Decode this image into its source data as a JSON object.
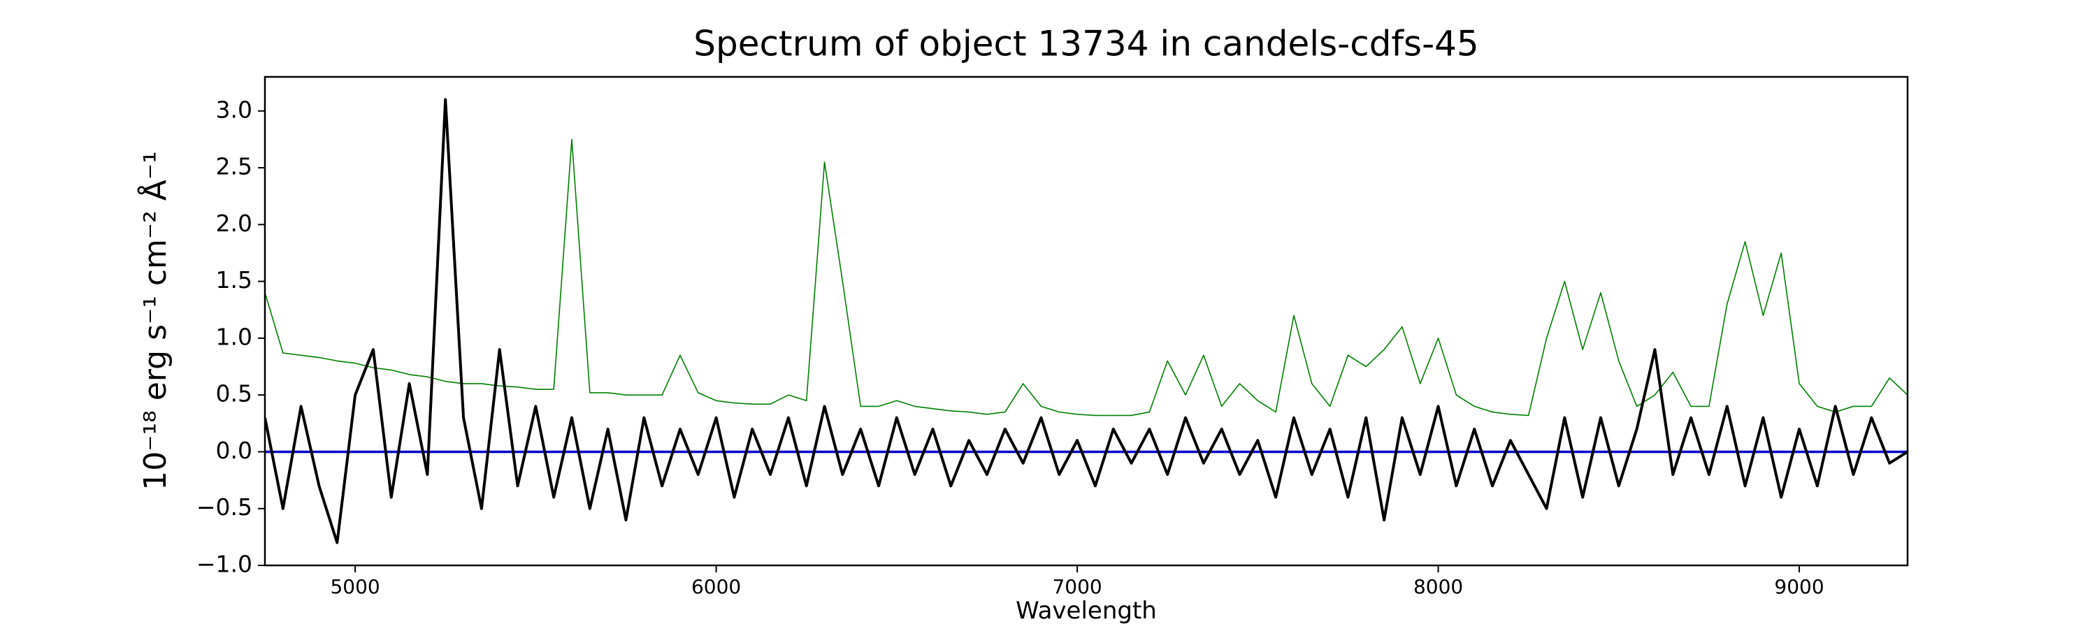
{
  "chart_data": {
    "type": "line",
    "title": "Spectrum of object 13734 in candels-cdfs-45",
    "xlabel": "Wavelength",
    "ylabel": "10⁻¹⁸ erg s⁻¹ cm⁻² Å⁻¹",
    "x": [
      4750,
      4800,
      4850,
      4900,
      4950,
      5000,
      5050,
      5100,
      5150,
      5200,
      5250,
      5300,
      5350,
      5400,
      5450,
      5500,
      5550,
      5600,
      5650,
      5700,
      5750,
      5800,
      5850,
      5900,
      5950,
      6000,
      6050,
      6100,
      6150,
      6200,
      6250,
      6300,
      6350,
      6400,
      6450,
      6500,
      6550,
      6600,
      6650,
      6700,
      6750,
      6800,
      6850,
      6900,
      6950,
      7000,
      7050,
      7100,
      7150,
      7200,
      7250,
      7300,
      7350,
      7400,
      7450,
      7500,
      7550,
      7600,
      7650,
      7700,
      7750,
      7800,
      7850,
      7900,
      7950,
      8000,
      8050,
      8100,
      8150,
      8200,
      8250,
      8300,
      8350,
      8400,
      8450,
      8500,
      8550,
      8600,
      8650,
      8700,
      8750,
      8800,
      8850,
      8900,
      8950,
      9000,
      9050,
      9100,
      9150,
      9200,
      9250,
      9300
    ],
    "series": [
      {
        "color": "#008000",
        "width": 1.6,
        "values": [
          1.4,
          0.87,
          0.85,
          0.83,
          0.8,
          0.78,
          0.74,
          0.72,
          0.68,
          0.66,
          0.62,
          0.6,
          0.6,
          0.58,
          0.57,
          0.55,
          0.55,
          2.75,
          0.52,
          0.52,
          0.5,
          0.5,
          0.5,
          0.85,
          0.52,
          0.45,
          0.43,
          0.42,
          0.42,
          0.5,
          0.45,
          2.55,
          1.5,
          0.4,
          0.4,
          0.45,
          0.4,
          0.38,
          0.36,
          0.35,
          0.33,
          0.35,
          0.6,
          0.4,
          0.35,
          0.33,
          0.32,
          0.32,
          0.32,
          0.35,
          0.8,
          0.5,
          0.85,
          0.4,
          0.6,
          0.45,
          0.35,
          1.2,
          0.6,
          0.4,
          0.85,
          0.75,
          0.9,
          1.1,
          0.6,
          1.0,
          0.5,
          0.4,
          0.35,
          0.33,
          0.32,
          1.0,
          1.5,
          0.9,
          1.4,
          0.8,
          0.4,
          0.5,
          0.7,
          0.4,
          0.4,
          1.3,
          1.85,
          1.2,
          1.75,
          0.6,
          0.4,
          0.35,
          0.4,
          0.4,
          0.65,
          0.5
        ]
      },
      {
        "color": "#0000cc",
        "width": 3.5,
        "values": [
          0,
          0,
          0,
          0,
          0,
          0,
          0,
          0,
          0,
          0,
          0,
          0,
          0,
          0,
          0,
          0,
          0,
          0,
          0,
          0,
          0,
          0,
          0,
          0,
          0,
          0,
          0,
          0,
          0,
          0,
          0,
          0,
          0,
          0,
          0,
          0,
          0,
          0,
          0,
          0,
          0,
          0,
          0,
          0,
          0,
          0,
          0,
          0,
          0,
          0,
          0,
          0,
          0,
          0,
          0,
          0,
          0,
          0,
          0,
          0,
          0,
          0,
          0,
          0,
          0,
          0,
          0,
          0,
          0,
          0,
          0,
          0,
          0,
          0,
          0,
          0,
          0,
          0,
          0,
          0,
          0,
          0,
          0,
          0,
          0,
          0,
          0,
          0,
          0,
          0,
          0,
          0
        ]
      },
      {
        "color": "#000000",
        "width": 4,
        "values": [
          0.3,
          -0.5,
          0.4,
          -0.3,
          -0.8,
          0.5,
          0.9,
          -0.4,
          0.6,
          -0.2,
          3.1,
          0.3,
          -0.5,
          0.9,
          -0.3,
          0.4,
          -0.4,
          0.3,
          -0.5,
          0.2,
          -0.6,
          0.3,
          -0.3,
          0.2,
          -0.2,
          0.3,
          -0.4,
          0.2,
          -0.2,
          0.3,
          -0.3,
          0.4,
          -0.2,
          0.2,
          -0.3,
          0.3,
          -0.2,
          0.2,
          -0.3,
          0.1,
          -0.2,
          0.2,
          -0.1,
          0.3,
          -0.2,
          0.1,
          -0.3,
          0.2,
          -0.1,
          0.2,
          -0.2,
          0.3,
          -0.1,
          0.2,
          -0.2,
          0.1,
          -0.4,
          0.3,
          -0.2,
          0.2,
          -0.4,
          0.3,
          -0.6,
          0.3,
          -0.2,
          0.4,
          -0.3,
          0.2,
          -0.3,
          0.1,
          -0.2,
          -0.5,
          0.3,
          -0.4,
          0.3,
          -0.3,
          0.2,
          0.9,
          -0.2,
          0.3,
          -0.2,
          0.4,
          -0.3,
          0.3,
          -0.4,
          0.2,
          -0.3,
          0.4,
          -0.2,
          0.3,
          -0.1,
          0.0
        ]
      }
    ],
    "xlim": [
      4750,
      9300
    ],
    "ylim": [
      -1,
      3.3
    ],
    "xticks": [
      5000,
      6000,
      7000,
      8000,
      9000
    ],
    "yticks": [
      {
        "value": -1,
        "label": "−1.0"
      },
      {
        "value": -0.5,
        "label": "−0.5"
      },
      {
        "value": 0,
        "label": "0.0"
      },
      {
        "value": 0.5,
        "label": "0.5"
      },
      {
        "value": 1,
        "label": "1.0"
      },
      {
        "value": 1.5,
        "label": "1.5"
      },
      {
        "value": 2,
        "label": "2.0"
      },
      {
        "value": 2.5,
        "label": "2.5"
      },
      {
        "value": 3,
        "label": "3.0"
      }
    ]
  }
}
